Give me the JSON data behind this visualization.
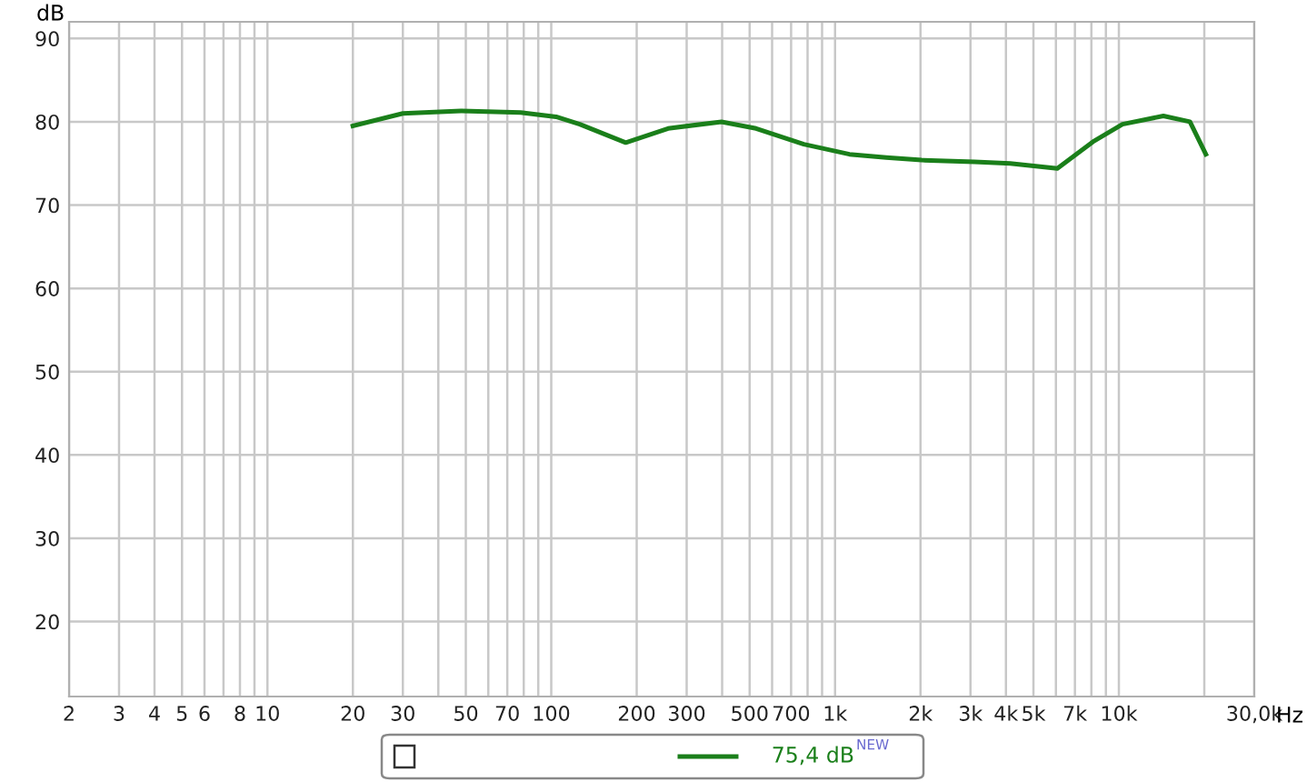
{
  "chart_data": {
    "type": "line",
    "xlabel": "Hz",
    "ylabel": "dB",
    "log": "x",
    "grid": true,
    "marker": "none",
    "line_style": "solid",
    "xlim": [
      2,
      30000
    ],
    "ylim": [
      11,
      92
    ],
    "xticks": [
      2,
      3,
      4,
      5,
      6,
      {
        "value": 7,
        "label": null
      },
      8,
      {
        "value": 9,
        "label": null
      },
      10,
      20,
      30,
      {
        "value": 40,
        "label": null
      },
      50,
      {
        "value": 60,
        "label": null
      },
      70,
      {
        "value": 80,
        "label": null
      },
      {
        "value": 90,
        "label": null
      },
      100,
      200,
      300,
      {
        "value": 400,
        "label": null
      },
      500,
      {
        "value": 600,
        "label": null
      },
      700,
      {
        "value": 800,
        "label": null
      },
      {
        "value": 900,
        "label": null
      },
      {
        "value": 1000,
        "label": "1k"
      },
      {
        "value": 2000,
        "label": "2k"
      },
      {
        "value": 3000,
        "label": "3k"
      },
      {
        "value": 4000,
        "label": "4k"
      },
      {
        "value": 5000,
        "label": "5k"
      },
      {
        "value": 6000,
        "label": null
      },
      {
        "value": 7000,
        "label": "7k"
      },
      {
        "value": 8000,
        "label": null
      },
      {
        "value": 9000,
        "label": null
      },
      {
        "value": 10000,
        "label": "10k"
      },
      {
        "value": 20000,
        "label": null
      },
      {
        "value": 30000,
        "label": "30,0k"
      }
    ],
    "yticks": [
      20,
      30,
      40,
      50,
      60,
      70,
      80,
      90
    ],
    "series": [
      {
        "color": "#1a7f1a",
        "x": [
          20,
          30,
          48,
          78,
          104,
          126,
          183,
          258,
          398,
          527,
          776,
          1124,
          1515,
          2018,
          3100,
          4140,
          6070,
          8100,
          10300,
          14350,
          17800,
          20250
        ],
        "values": [
          79.5,
          81.0,
          81.3,
          81.1,
          80.6,
          79.7,
          77.5,
          79.2,
          80.0,
          79.2,
          77.3,
          76.1,
          75.7,
          75.4,
          75.2,
          75.0,
          74.4,
          77.6,
          79.7,
          80.7,
          80.0,
          76.1
        ]
      }
    ],
    "annotations": [
      "75,4 dB",
      "NEW"
    ]
  }
}
